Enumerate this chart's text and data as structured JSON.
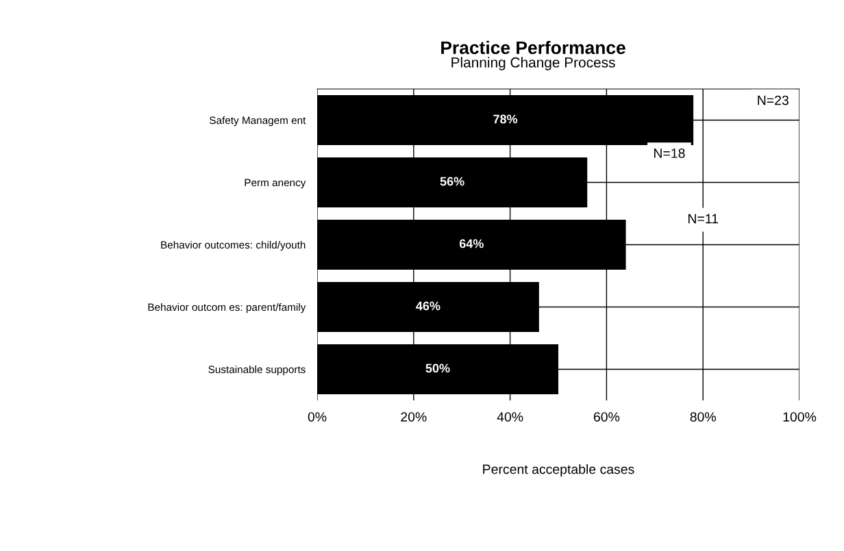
{
  "chart_data": {
    "type": "bar",
    "orientation": "horizontal",
    "title": "Practice Performance",
    "subtitle": "Planning Change Process",
    "xlabel": "Percent acceptable cases",
    "categories": [
      "Safety Managem ent",
      "Perm anency",
      "Behavior outcomes: child/youth",
      "Behavior outcom es: parent/family",
      "Sustainable supports"
    ],
    "values": [
      78,
      56,
      64,
      46,
      50
    ],
    "color": "#000000",
    "value_labels": [
      "78%",
      "56%",
      "64%",
      "46%",
      "50%"
    ],
    "xlim": [
      0,
      100
    ],
    "xticks": [
      {
        "value": 0,
        "label": "0%"
      },
      {
        "value": 20,
        "label": "20%"
      },
      {
        "value": 40,
        "label": "40%"
      },
      {
        "value": 60,
        "label": "60%"
      },
      {
        "value": 80,
        "label": "80%"
      },
      {
        "value": 100,
        "label": "100%"
      }
    ],
    "grid": true,
    "annotations": [
      "N=23",
      "N=18",
      "N=11"
    ]
  }
}
